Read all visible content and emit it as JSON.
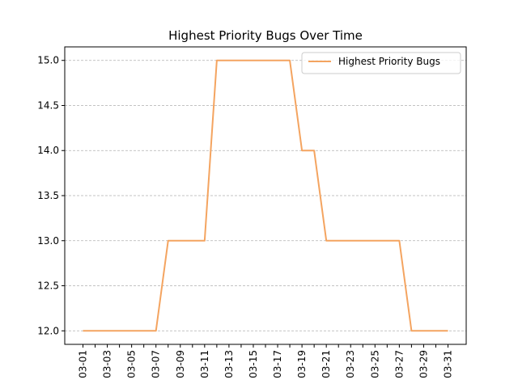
{
  "chart_data": {
    "type": "line",
    "title": "Highest Priority Bugs Over Time",
    "xlabel": "",
    "ylabel": "",
    "x": [
      "03-01",
      "03-02",
      "03-03",
      "03-04",
      "03-05",
      "03-06",
      "03-07",
      "03-08",
      "03-09",
      "03-10",
      "03-11",
      "03-12",
      "03-13",
      "03-14",
      "03-15",
      "03-16",
      "03-17",
      "03-18",
      "03-19",
      "03-20",
      "03-21",
      "03-22",
      "03-23",
      "03-24",
      "03-25",
      "03-26",
      "03-27",
      "03-28",
      "03-29",
      "03-30",
      "03-31"
    ],
    "x_tick_labels": [
      "03-01",
      "03-03",
      "03-05",
      "03-07",
      "03-09",
      "03-11",
      "03-13",
      "03-15",
      "03-17",
      "03-19",
      "03-21",
      "03-23",
      "03-25",
      "03-27",
      "03-29",
      "03-31"
    ],
    "series": [
      {
        "name": "Highest Priority Bugs",
        "color": "#f4a460",
        "values": [
          12,
          12,
          12,
          12,
          12,
          12,
          12,
          13,
          13,
          13,
          13,
          15,
          15,
          15,
          15,
          15,
          15,
          15,
          14,
          14,
          13,
          13,
          13,
          13,
          13,
          13,
          13,
          12,
          12,
          12,
          12
        ]
      }
    ],
    "ylim": [
      11.85,
      15.15
    ],
    "y_ticks": [
      12.0,
      12.5,
      13.0,
      13.5,
      14.0,
      14.5,
      15.0
    ],
    "y_tick_labels": [
      "12.0",
      "12.5",
      "13.0",
      "13.5",
      "14.0",
      "14.5",
      "15.0"
    ],
    "grid": "y-dashed",
    "legend_position": "top-right"
  }
}
